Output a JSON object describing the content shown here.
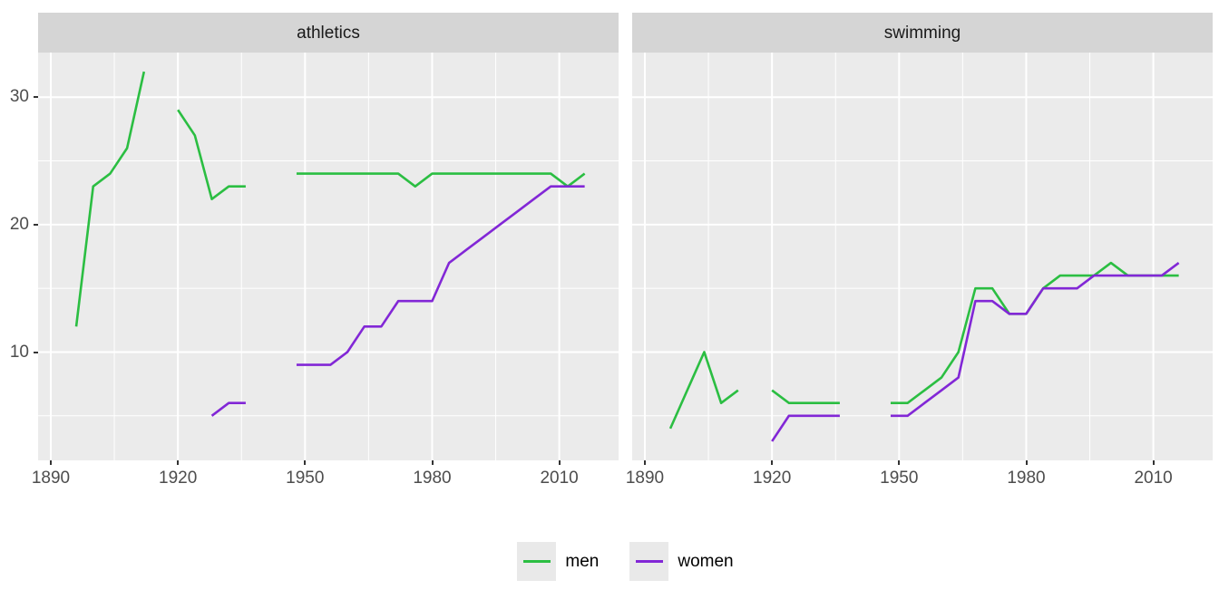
{
  "chart_data": {
    "type": "line",
    "title": "",
    "xlabel": "",
    "ylabel": "",
    "grid": "on",
    "legend_position": "bottom",
    "x_domain": [
      1887,
      2024
    ],
    "y_domain": [
      1.5,
      33.5
    ],
    "x_ticks": [
      1890,
      1920,
      1950,
      1980,
      2010
    ],
    "x_minor_gridlines": [
      1905,
      1935,
      1965,
      1995
    ],
    "y_ticks": [
      10,
      20,
      30
    ],
    "y_minor_gridlines": [
      5,
      15,
      25
    ],
    "gap_break_years": 4,
    "facets": [
      {
        "label": "athletics",
        "series": [
          {
            "name": "men",
            "color": "#2BBE42",
            "points": [
              [
                1896,
                12
              ],
              [
                1900,
                23
              ],
              [
                1904,
                24
              ],
              [
                1908,
                26
              ],
              [
                1912,
                32
              ],
              [
                1920,
                29
              ],
              [
                1924,
                27
              ],
              [
                1928,
                22
              ],
              [
                1932,
                23
              ],
              [
                1936,
                23
              ],
              [
                1948,
                24
              ],
              [
                1952,
                24
              ],
              [
                1956,
                24
              ],
              [
                1960,
                24
              ],
              [
                1964,
                24
              ],
              [
                1968,
                24
              ],
              [
                1972,
                24
              ],
              [
                1976,
                23
              ],
              [
                1980,
                24
              ],
              [
                1984,
                24
              ],
              [
                1988,
                24
              ],
              [
                1992,
                24
              ],
              [
                1996,
                24
              ],
              [
                2000,
                24
              ],
              [
                2004,
                24
              ],
              [
                2008,
                24
              ],
              [
                2012,
                23
              ],
              [
                2016,
                24
              ]
            ]
          },
          {
            "name": "women",
            "color": "#8227D6",
            "points": [
              [
                1928,
                5
              ],
              [
                1932,
                6
              ],
              [
                1936,
                6
              ],
              [
                1948,
                9
              ],
              [
                1952,
                9
              ],
              [
                1956,
                9
              ],
              [
                1960,
                10
              ],
              [
                1964,
                12
              ],
              [
                1968,
                12
              ],
              [
                1972,
                14
              ],
              [
                1976,
                14
              ],
              [
                1980,
                14
              ],
              [
                1984,
                17
              ],
              [
                1988,
                18
              ],
              [
                1992,
                19
              ],
              [
                1996,
                20
              ],
              [
                2000,
                21
              ],
              [
                2004,
                22
              ],
              [
                2008,
                23
              ],
              [
                2012,
                23
              ],
              [
                2016,
                23
              ]
            ]
          }
        ]
      },
      {
        "label": "swimming",
        "series": [
          {
            "name": "men",
            "color": "#2BBE42",
            "points": [
              [
                1896,
                4
              ],
              [
                1900,
                7
              ],
              [
                1904,
                10
              ],
              [
                1908,
                6
              ],
              [
                1912,
                7
              ],
              [
                1920,
                7
              ],
              [
                1924,
                6
              ],
              [
                1928,
                6
              ],
              [
                1932,
                6
              ],
              [
                1936,
                6
              ],
              [
                1948,
                6
              ],
              [
                1952,
                6
              ],
              [
                1956,
                7
              ],
              [
                1960,
                8
              ],
              [
                1964,
                10
              ],
              [
                1968,
                15
              ],
              [
                1972,
                15
              ],
              [
                1976,
                13
              ],
              [
                1980,
                13
              ],
              [
                1984,
                15
              ],
              [
                1988,
                16
              ],
              [
                1992,
                16
              ],
              [
                1996,
                16
              ],
              [
                2000,
                17
              ],
              [
                2004,
                16
              ],
              [
                2008,
                16
              ],
              [
                2012,
                16
              ],
              [
                2016,
                16
              ]
            ]
          },
          {
            "name": "women",
            "color": "#8227D6",
            "points": [
              [
                1920,
                3
              ],
              [
                1924,
                5
              ],
              [
                1928,
                5
              ],
              [
                1932,
                5
              ],
              [
                1936,
                5
              ],
              [
                1948,
                5
              ],
              [
                1952,
                5
              ],
              [
                1956,
                6
              ],
              [
                1960,
                7
              ],
              [
                1964,
                8
              ],
              [
                1968,
                14
              ],
              [
                1972,
                14
              ],
              [
                1976,
                13
              ],
              [
                1980,
                13
              ],
              [
                1984,
                15
              ],
              [
                1988,
                15
              ],
              [
                1992,
                15
              ],
              [
                1996,
                16
              ],
              [
                2000,
                16
              ],
              [
                2004,
                16
              ],
              [
                2008,
                16
              ],
              [
                2012,
                16
              ],
              [
                2016,
                17
              ]
            ]
          }
        ]
      }
    ]
  },
  "legend": {
    "items": [
      {
        "label": "men",
        "color": "#2BBE42"
      },
      {
        "label": "women",
        "color": "#8227D6"
      }
    ]
  },
  "colors": {
    "figure_background": "#FFFFFF",
    "panel_background": "#EBEBEB",
    "strip_background": "#D5D5D5",
    "strip_text": "#1A1A1A",
    "gridline": "#FFFFFF",
    "axis_text": "#4D4D4D",
    "tick_mark": "#333333",
    "legend_key_background": "#E9E9E9"
  }
}
